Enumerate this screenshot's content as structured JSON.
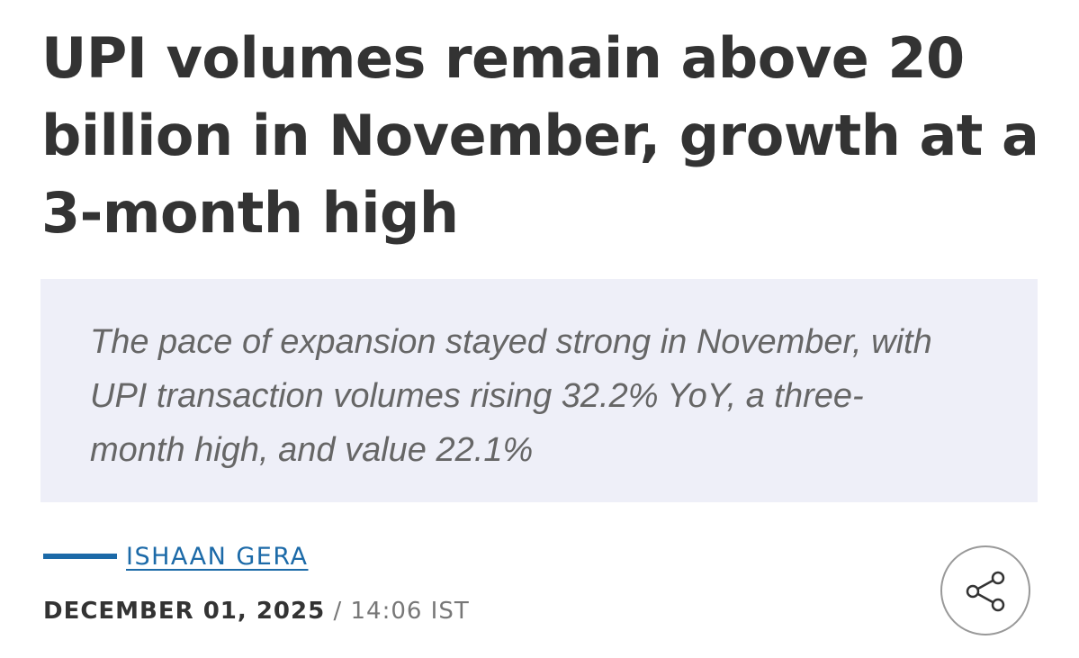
{
  "article": {
    "title_lines": [
      "UPI volumes remain above 20",
      "billion in November, growth at a",
      "3-month high"
    ],
    "summary_lines": [
      "The pace of expansion stayed strong in November, with",
      "UPI transaction volumes rising 32.2% YoY, a three-",
      "month high, and value 22.1%"
    ],
    "author": "ISHAAN GERA",
    "date": "DECEMBER 01, 2025",
    "separator": "/",
    "time": "14:06 IST"
  }
}
